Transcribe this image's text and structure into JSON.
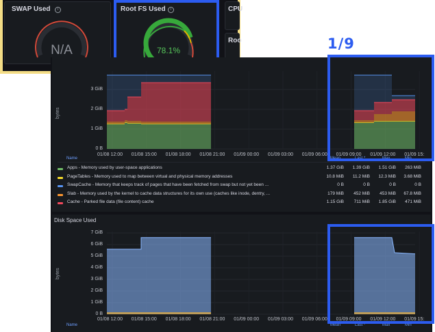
{
  "colors": {
    "apps": "#73bf69",
    "page_tables": "#fade2a",
    "swap_cache": "#5794f2",
    "slab": "#ff9830",
    "cache": "#f2495c",
    "disk": "#8ab8ff"
  },
  "swap_panel": {
    "title": "SWAP Used",
    "value": "N/A"
  },
  "rootfs_panel": {
    "title": "Root FS Used",
    "value": "78.1%",
    "fill": 0.781
  },
  "cpu_panel": {
    "title": "CPU"
  },
  "roo_panel": {
    "title": "Roo"
  },
  "page_indicator": "1/9",
  "memory_panel": {
    "y_axis_label": "bytes",
    "y_ticks": [
      "3 GiB",
      "2 GiB",
      "1 GiB",
      "0 B"
    ],
    "x_ticks": [
      "01/08 12:00",
      "01/08 15:00",
      "01/08 18:00",
      "01/08 21:00",
      "01/09 00:00",
      "01/09 03:00",
      "01/09 06:00",
      "01/09 09:00",
      "01/09 12:00",
      "01/09 15:"
    ],
    "legend_header": {
      "name": "Name",
      "mean": "Mean",
      "last": "Last *",
      "max": "Max",
      "min": "Min"
    },
    "legend": [
      {
        "label": "Apps - Memory used by user-space applications",
        "color": "#73bf69",
        "mean": "1.37 GiB",
        "last": "1.39 GiB",
        "max": "1.51 GiB",
        "min": "263 MiB"
      },
      {
        "label": "PageTables - Memory used to map between virtual and physical memory addresses",
        "color": "#fade2a",
        "mean": "10.8 MiB",
        "last": "11.2 MiB",
        "max": "12.3 MiB",
        "min": "3.68 MiB"
      },
      {
        "label": "SwapCache - Memory that keeps track of pages that have been fetched from swap but not yet been ...",
        "color": "#5794f2",
        "mean": "0 B",
        "last": "0 B",
        "max": "0 B",
        "min": "0 B"
      },
      {
        "label": "Slab - Memory used by the kernel to cache data structures for its own use (caches like inode, dentry, ...",
        "color": "#ff9830",
        "mean": "179 MiB",
        "last": "452 MiB",
        "max": "453 MiB",
        "min": "67.8 MiB"
      },
      {
        "label": "Cache - Parked file data (file content) cache",
        "color": "#f2495c",
        "mean": "1.15 GiB",
        "last": "711 MiB",
        "max": "1.85 GiB",
        "min": "471 MiB"
      }
    ]
  },
  "disk_panel": {
    "title": "Disk Space Used",
    "y_axis_label": "bytes",
    "y_ticks": [
      "7 GiB",
      "6 GiB",
      "5 GiB",
      "4 GiB",
      "3 GiB",
      "2 GiB",
      "1 GiB",
      "0 B"
    ],
    "x_ticks": [
      "01/08 12:00",
      "01/08 15:00",
      "01/08 18:00",
      "01/08 21:00",
      "01/09 00:00",
      "01/09 03:00",
      "01/09 06:00",
      "01/09 09:00",
      "01/09 12:00",
      "01/09 15:"
    ],
    "legend_header": {
      "name": "Name",
      "mean": "Mean",
      "last": "Last *",
      "max": "Max",
      "min": "Min"
    }
  }
}
